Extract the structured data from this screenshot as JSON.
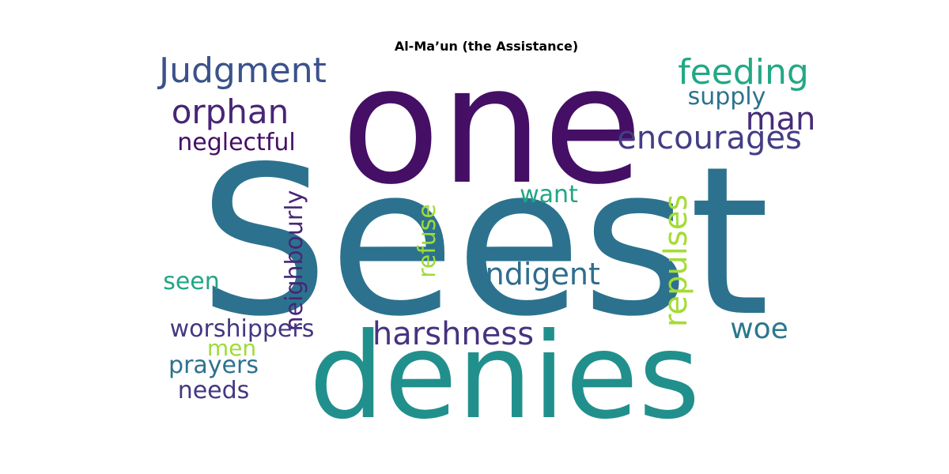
{
  "chart_data": {
    "type": "wordcloud",
    "title": "Al-Ma’un (the Assistance)",
    "words": [
      {
        "text": "Seest",
        "color": "#2c728e"
      },
      {
        "text": "one",
        "color": "#440f65"
      },
      {
        "text": "denies",
        "color": "#21908c"
      },
      {
        "text": "Judgment",
        "color": "#3b528b"
      },
      {
        "text": "feeding",
        "color": "#22a884"
      },
      {
        "text": "orphan",
        "color": "#482576"
      },
      {
        "text": "supply",
        "color": "#2c728e"
      },
      {
        "text": "man",
        "color": "#472c7a"
      },
      {
        "text": "encourages",
        "color": "#433e85"
      },
      {
        "text": "neglectful",
        "color": "#440f65"
      },
      {
        "text": "neighbourly",
        "color": "#482576"
      },
      {
        "text": "want",
        "color": "#21a585"
      },
      {
        "text": "refuse",
        "color": "#a0da39"
      },
      {
        "text": "repulses",
        "color": "#a5db36"
      },
      {
        "text": "indigent",
        "color": "#2e6e8e"
      },
      {
        "text": "seen",
        "color": "#21a585"
      },
      {
        "text": "worshippers",
        "color": "#453781"
      },
      {
        "text": "harshness",
        "color": "#46337f"
      },
      {
        "text": "woe",
        "color": "#2a788e"
      },
      {
        "text": "men",
        "color": "#a0da39"
      },
      {
        "text": "prayers",
        "color": "#2c728e"
      },
      {
        "text": "needs",
        "color": "#453781"
      }
    ]
  }
}
